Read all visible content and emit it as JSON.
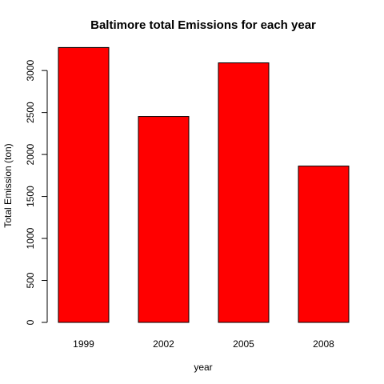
{
  "chart_data": {
    "type": "bar",
    "title": "Baltimore total Emissions for each year",
    "xlabel": "year",
    "ylabel": "Total Emission (ton)",
    "categories": [
      "1999",
      "2002",
      "2005",
      "2008"
    ],
    "values": [
      3274,
      2453,
      3091,
      1862
    ],
    "ylim": [
      0,
      3300
    ],
    "yticks": [
      0,
      500,
      1000,
      1500,
      2000,
      2500,
      3000
    ],
    "bar_color": "#ff0000",
    "bar_border_color": "#000000",
    "grid": false,
    "legend": "none"
  }
}
